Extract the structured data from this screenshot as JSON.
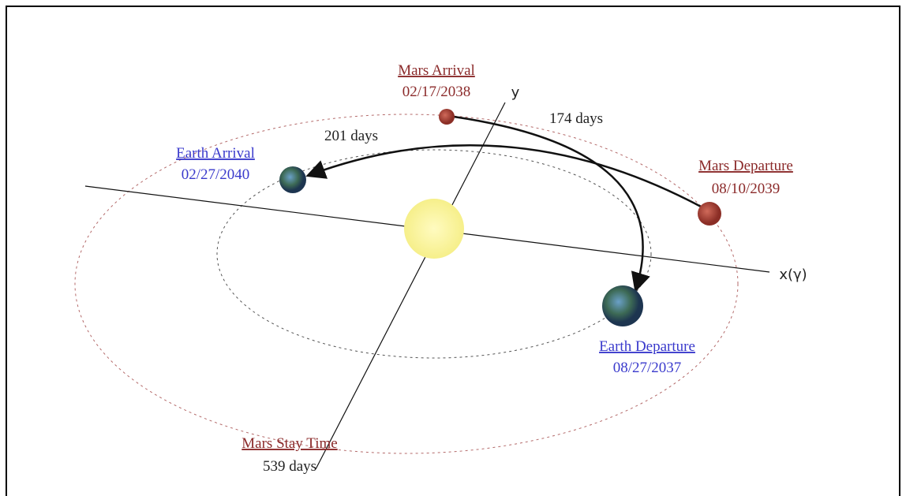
{
  "nodes": [
    {
      "label": "Mars Arrival",
      "date": "02/17/2038"
    },
    {
      "label": "Earth Arrival",
      "date": "02/27/2040"
    },
    {
      "label": "Mars Departure",
      "date": "08/10/2039"
    },
    {
      "label": "Earth Departure",
      "date": "08/27/2037"
    },
    {
      "label": "Mars Stay Time",
      "date": "539 days"
    }
  ],
  "transfers": [
    "174 days",
    "201 days"
  ],
  "axes": {
    "x": "x(γ)",
    "y": "y"
  }
}
